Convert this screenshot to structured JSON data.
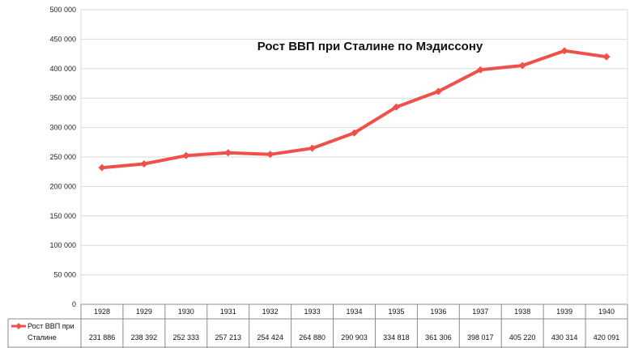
{
  "chart_data": {
    "type": "line",
    "title": "Рост ВВП при Сталине по Мэдиссону",
    "categories": [
      "1928",
      "1929",
      "1930",
      "1931",
      "1932",
      "1933",
      "1934",
      "1935",
      "1936",
      "1937",
      "1938",
      "1939",
      "1940"
    ],
    "series": [
      {
        "name": "Рост ВВП при Сталине",
        "values": [
          231886,
          238392,
          252333,
          257213,
          254424,
          264880,
          290903,
          334818,
          361306,
          398017,
          405220,
          430314,
          420091
        ],
        "value_labels": [
          "231 886",
          "238 392",
          "252 333",
          "257 213",
          "254 424",
          "264 880",
          "290 903",
          "334 818",
          "361 306",
          "398 017",
          "405 220",
          "430 314",
          "420 091"
        ],
        "color": "#f0504a"
      }
    ],
    "ylim": [
      0,
      500000
    ],
    "yticks": [
      "0",
      "50 000",
      "100 000",
      "150 000",
      "200 000",
      "250 000",
      "300 000",
      "350 000",
      "400 000",
      "450 000",
      "500 000"
    ],
    "ytick_values": [
      0,
      50000,
      100000,
      150000,
      200000,
      250000,
      300000,
      350000,
      400000,
      450000,
      500000
    ],
    "grid": true,
    "legend": "data-table-left"
  },
  "colors": {
    "grid": "#d9d9d9",
    "axis": "#8c8c8c",
    "line": "#f0504a"
  }
}
